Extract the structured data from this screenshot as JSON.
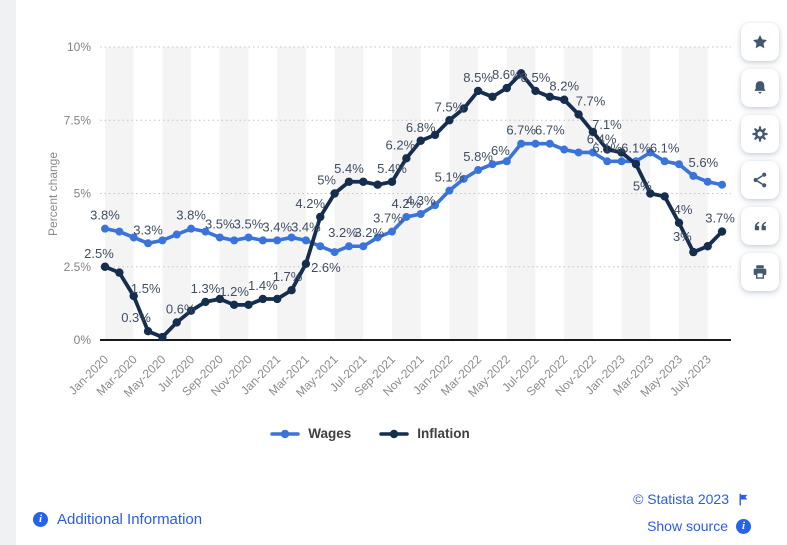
{
  "chart_data": {
    "type": "line",
    "title": "",
    "ylabel": "Percent change",
    "ylim": [
      0,
      10
    ],
    "grid": "dotted-horizontal",
    "bands": true,
    "legend_position": "bottom",
    "y_ticks": [
      {
        "v": 0,
        "t": "0%"
      },
      {
        "v": 2.5,
        "t": "2.5%"
      },
      {
        "v": 5,
        "t": "5%"
      },
      {
        "v": 7.5,
        "t": "7.5%"
      },
      {
        "v": 10,
        "t": "10%"
      }
    ],
    "x_tick_labels": [
      "Jan-2020",
      "Mar-2020",
      "May-2020",
      "Jul-2020",
      "Sep-2020",
      "Nov-2020",
      "Jan-2021",
      "Mar-2021",
      "May-2021",
      "Jul-2021",
      "Sep-2021",
      "Nov-2021",
      "Jan-2022",
      "Mar-2022",
      "May-2022",
      "Jul-2022",
      "Sep-2022",
      "Nov-2022",
      "Jan-2023",
      "Mar-2023",
      "May-2023",
      "July-2023"
    ],
    "x": [
      "Jan-2020",
      "Feb-2020",
      "Mar-2020",
      "Apr-2020",
      "May-2020",
      "Jun-2020",
      "Jul-2020",
      "Aug-2020",
      "Sep-2020",
      "Oct-2020",
      "Nov-2020",
      "Dec-2020",
      "Jan-2021",
      "Feb-2021",
      "Mar-2021",
      "Apr-2021",
      "May-2021",
      "Jun-2021",
      "Jul-2021",
      "Aug-2021",
      "Sep-2021",
      "Oct-2021",
      "Nov-2021",
      "Dec-2021",
      "Jan-2022",
      "Feb-2022",
      "Mar-2022",
      "Apr-2022",
      "May-2022",
      "Jun-2022",
      "Jul-2022",
      "Aug-2022",
      "Sep-2022",
      "Oct-2022",
      "Nov-2022",
      "Dec-2022",
      "Jan-2023",
      "Feb-2023",
      "Mar-2023",
      "Apr-2023",
      "May-2023",
      "Jun-2023",
      "Jul-2023",
      "Aug-2023"
    ],
    "series": [
      {
        "name": "Wages",
        "color": "#3a73d9",
        "values": [
          3.8,
          3.7,
          3.5,
          3.3,
          3.4,
          3.6,
          3.8,
          3.7,
          3.5,
          3.4,
          3.5,
          3.4,
          3.4,
          3.5,
          3.4,
          3.2,
          3.0,
          3.2,
          3.2,
          3.5,
          3.7,
          4.2,
          4.3,
          4.6,
          5.1,
          5.5,
          5.8,
          6.0,
          6.1,
          6.7,
          6.7,
          6.7,
          6.5,
          6.4,
          6.4,
          6.1,
          6.1,
          6.1,
          6.4,
          6.1,
          6.0,
          5.6,
          5.4,
          5.3
        ],
        "point_labels": [
          {
            "i": 0,
            "t": "3.8%"
          },
          {
            "i": 3,
            "t": "3.3%"
          },
          {
            "i": 6,
            "t": "3.8%"
          },
          {
            "i": 8,
            "t": "3.5%"
          },
          {
            "i": 10,
            "t": "3.5%"
          },
          {
            "i": 12,
            "t": "3.4%"
          },
          {
            "i": 14,
            "t": "3.4%"
          },
          {
            "i": 17,
            "t": "3.2%",
            "dx": -6
          },
          {
            "i": 18,
            "t": "3.2%",
            "dx": 6
          },
          {
            "i": 20,
            "t": "3.7%",
            "dx": -4
          },
          {
            "i": 21,
            "t": "4.2%"
          },
          {
            "i": 22,
            "t": "4.3%"
          },
          {
            "i": 24,
            "t": "5.1%"
          },
          {
            "i": 26,
            "t": "5.8%"
          },
          {
            "i": 27,
            "t": "6%",
            "dx": 8
          },
          {
            "i": 29,
            "t": "6.7%"
          },
          {
            "i": 31,
            "t": "6.7%"
          },
          {
            "i": 35,
            "t": "6.1%"
          },
          {
            "i": 37,
            "t": "6.1%"
          },
          {
            "i": 39,
            "t": "6.1%"
          },
          {
            "i": 41,
            "t": "5.6%",
            "dx": 10
          }
        ]
      },
      {
        "name": "Inflation",
        "color": "#15python-placeholder",
        "values": [
          2.5,
          2.3,
          1.5,
          0.3,
          0.1,
          0.6,
          1.0,
          1.3,
          1.4,
          1.2,
          1.2,
          1.4,
          1.4,
          1.7,
          2.6,
          4.2,
          5.0,
          5.4,
          5.4,
          5.3,
          5.4,
          6.2,
          6.8,
          7.0,
          7.5,
          7.9,
          8.5,
          8.3,
          8.6,
          9.1,
          8.5,
          8.3,
          8.2,
          7.7,
          7.1,
          6.5,
          6.4,
          6.0,
          5.0,
          4.9,
          4.0,
          3.0,
          3.2,
          3.7
        ],
        "point_labels": [
          {
            "i": 0,
            "t": "2.5%",
            "dx": -6
          },
          {
            "i": 2,
            "t": "1.5%",
            "dx": 12,
            "dy": 6
          },
          {
            "i": 3,
            "t": "0.3%",
            "dx": -12
          },
          {
            "i": 5,
            "t": "0.6%",
            "dx": 4
          },
          {
            "i": 7,
            "t": "1.3%"
          },
          {
            "i": 9,
            "t": "1.2%"
          },
          {
            "i": 11,
            "t": "1.4%"
          },
          {
            "i": 13,
            "t": "1.7%",
            "dx": -4
          },
          {
            "i": 14,
            "t": "2.6%",
            "dx": 20,
            "dy": 17
          },
          {
            "i": 15,
            "t": "4.2%",
            "dx": -10
          },
          {
            "i": 16,
            "t": "5%",
            "dx": -8
          },
          {
            "i": 17,
            "t": "5.4%"
          },
          {
            "i": 20,
            "t": "5.4%"
          },
          {
            "i": 21,
            "t": "6.2%",
            "dx": -6
          },
          {
            "i": 22,
            "t": "6.8%"
          },
          {
            "i": 24,
            "t": "7.5%"
          },
          {
            "i": 26,
            "t": "8.5%"
          },
          {
            "i": 28,
            "t": "8.6%"
          },
          {
            "i": 30,
            "t": "8.5%"
          },
          {
            "i": 32,
            "t": "8.2%"
          },
          {
            "i": 33,
            "t": "7.7%",
            "dx": 12
          },
          {
            "i": 34,
            "t": "7.1%",
            "dx": 14,
            "dy": 6
          },
          {
            "i": 36,
            "t": "6.4%",
            "dx": -20
          },
          {
            "i": 38,
            "t": "5%",
            "dx": -8,
            "dy": 6
          },
          {
            "i": 40,
            "t": "4%",
            "dx": 4
          },
          {
            "i": 41,
            "t": "3%",
            "dx": -11,
            "dy": -2
          },
          {
            "i": 43,
            "t": "3.7%",
            "dx": -2
          }
        ]
      }
    ]
  },
  "sidebar": {
    "buttons": [
      {
        "name": "favorite",
        "icon": "star-icon"
      },
      {
        "name": "alerts",
        "icon": "bell-icon"
      },
      {
        "name": "settings",
        "icon": "gear-icon"
      },
      {
        "name": "share",
        "icon": "share-icon"
      },
      {
        "name": "cite",
        "icon": "quote-icon"
      },
      {
        "name": "print",
        "icon": "printer-icon"
      }
    ]
  },
  "footer": {
    "additional_information": "Additional Information",
    "copyright": "© Statista 2023",
    "show_source": "Show source"
  }
}
